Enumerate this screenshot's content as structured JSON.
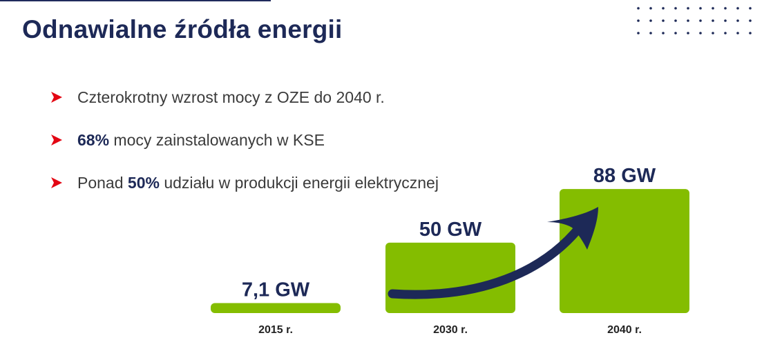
{
  "slide": {
    "title": "Odnawialne źródła energii"
  },
  "bullets": [
    {
      "pre": "Czterokrotny wzrost mocy z OZE do 2040 r.",
      "bold": "",
      "post": ""
    },
    {
      "pre": "",
      "bold": "68%",
      "post": " mocy zainstalowanych w KSE"
    },
    {
      "pre": "Ponad ",
      "bold": "50%",
      "post": " udziału w produkcji energii elektrycznej"
    }
  ],
  "colors": {
    "bar": "#84bd00",
    "accent_arrow": "#1d2957",
    "bullet_marker": "#e30613",
    "text": "#3b3b3b",
    "title": "#1d2957"
  },
  "icons": {
    "bullet": "triangle-arrow-icon",
    "growth": "curved-arrow-icon",
    "decoration": "dot-grid-icon"
  },
  "chart_data": {
    "type": "bar",
    "categories": [
      "2015 r.",
      "2030 r.",
      "2040 r."
    ],
    "values": [
      7.1,
      50,
      88
    ],
    "data_labels": [
      "7,1 GW",
      "50 GW",
      "88 GW"
    ],
    "unit": "GW",
    "title": "",
    "xlabel": "",
    "ylabel": "",
    "ylim": [
      0,
      92
    ],
    "grid": false,
    "legend": "none"
  }
}
